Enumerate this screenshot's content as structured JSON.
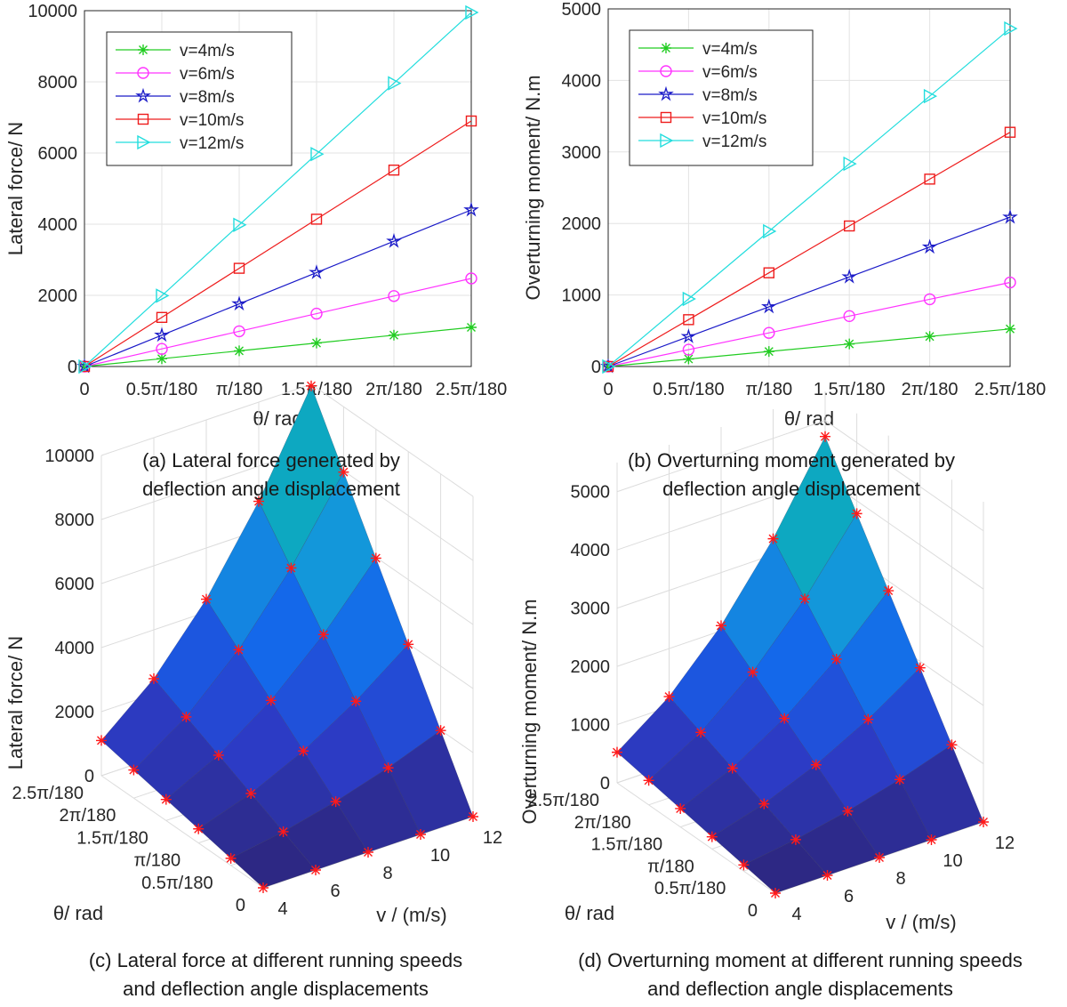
{
  "chart_data": [
    {
      "type": "line",
      "title": "",
      "caption": [
        "(a) Lateral force generated by",
        "deflection angle displacement"
      ],
      "xlabel": "θ/ rad",
      "ylabel": "Lateral force/ N",
      "x": [
        0,
        0.5,
        1,
        1.5,
        2,
        2.5
      ],
      "xtick_labels": [
        "0",
        "0.5π/180",
        "π/180",
        "1.5π/180",
        "2π/180",
        "2.5π/180"
      ],
      "ytick_labels": [
        "0",
        "2000",
        "4000",
        "6000",
        "8000",
        "10000"
      ],
      "ylim": [
        0,
        10000
      ],
      "xlim": [
        0,
        2.5
      ],
      "grid": true,
      "legend_position": "top-left",
      "series": [
        {
          "name": "v=4m/s",
          "marker": "asterisk",
          "color": "#22cc22",
          "values": [
            0,
            220,
            440,
            660,
            880,
            1100
          ]
        },
        {
          "name": "v=6m/s",
          "marker": "circle",
          "color": "#ff33ff",
          "values": [
            0,
            495,
            990,
            1485,
            1980,
            2475
          ]
        },
        {
          "name": "v=8m/s",
          "marker": "star",
          "color": "#1a1ac8",
          "values": [
            0,
            880,
            1760,
            2640,
            3520,
            4400
          ]
        },
        {
          "name": "v=10m/s",
          "marker": "square",
          "color": "#ee1c1c",
          "values": [
            0,
            1380,
            2760,
            4140,
            5520,
            6900
          ]
        },
        {
          "name": "v=12m/s",
          "marker": "triangle-right",
          "color": "#22dddd",
          "values": [
            0,
            1990,
            3980,
            5970,
            7960,
            9950
          ]
        }
      ]
    },
    {
      "type": "line",
      "title": "",
      "caption": [
        "(b) Overturning moment generated by",
        "deflection angle displacement"
      ],
      "xlabel": "θ/ rad",
      "ylabel": "Overturning moment/ N.m",
      "x": [
        0,
        0.5,
        1,
        1.5,
        2,
        2.5
      ],
      "xtick_labels": [
        "0",
        "0.5π/180",
        "π/180",
        "1.5π/180",
        "2π/180",
        "2.5π/180"
      ],
      "ytick_labels": [
        "0",
        "1000",
        "2000",
        "3000",
        "4000",
        "5000"
      ],
      "ylim": [
        0,
        5000
      ],
      "xlim": [
        0,
        2.5
      ],
      "grid": true,
      "legend_position": "top-left",
      "series": [
        {
          "name": "v=4m/s",
          "marker": "asterisk",
          "color": "#22cc22",
          "values": [
            0,
            105,
            210,
            315,
            420,
            525
          ]
        },
        {
          "name": "v=6m/s",
          "marker": "circle",
          "color": "#ff33ff",
          "values": [
            0,
            235,
            470,
            705,
            940,
            1175
          ]
        },
        {
          "name": "v=8m/s",
          "marker": "star",
          "color": "#1a1ac8",
          "values": [
            0,
            418,
            835,
            1253,
            1670,
            2088
          ]
        },
        {
          "name": "v=10m/s",
          "marker": "square",
          "color": "#ee1c1c",
          "values": [
            0,
            655,
            1310,
            1965,
            2620,
            3275
          ]
        },
        {
          "name": "v=12m/s",
          "marker": "triangle-right",
          "color": "#22dddd",
          "values": [
            0,
            945,
            1890,
            2835,
            3780,
            4725
          ]
        }
      ]
    },
    {
      "type": "surface",
      "title": "",
      "caption": [
        "(c) Lateral force at different running speeds",
        "and deflection angle displacements"
      ],
      "xlabel": "v / (m/s)",
      "ylabel": "θ/ rad",
      "zlabel": "Lateral force/ N",
      "v": [
        4,
        6,
        8,
        10,
        12
      ],
      "v_tick_labels": [
        "4",
        "6",
        "8",
        "10",
        "12"
      ],
      "theta": [
        0,
        0.5,
        1,
        1.5,
        2,
        2.5
      ],
      "theta_tick_labels": [
        "0",
        "0.5π/180",
        "π/180",
        "1.5π/180",
        "2π/180",
        "2.5π/180"
      ],
      "z_tick_labels": [
        "0",
        "2000",
        "4000",
        "6000",
        "8000",
        "10000"
      ],
      "zlim": [
        0,
        10000
      ],
      "z_values_by_v": [
        [
          0,
          220,
          440,
          660,
          880,
          1100
        ],
        [
          0,
          495,
          990,
          1485,
          1980,
          2475
        ],
        [
          0,
          880,
          1760,
          2640,
          3520,
          4400
        ],
        [
          0,
          1380,
          2760,
          4140,
          5520,
          6900
        ],
        [
          0,
          1990,
          3980,
          5970,
          7960,
          9950
        ]
      ],
      "marker_color": "#ff1a1a"
    },
    {
      "type": "surface",
      "title": "",
      "caption": [
        "(d) Overturning moment at different running speeds",
        "and deflection angle displacements"
      ],
      "xlabel": "v / (m/s)",
      "ylabel": "θ/ rad",
      "zlabel": "Overturning moment/ N.m",
      "v": [
        4,
        6,
        8,
        10,
        12
      ],
      "v_tick_labels": [
        "4",
        "6",
        "8",
        "10",
        "12"
      ],
      "theta": [
        0,
        0.5,
        1,
        1.5,
        2,
        2.5
      ],
      "theta_tick_labels": [
        "0",
        "0.5π/180",
        "π/180",
        "1.5π/180",
        "2π/180",
        "2.5π/180"
      ],
      "z_tick_labels": [
        "0",
        "1000",
        "2000",
        "3000",
        "4000",
        "5000"
      ],
      "zlim": [
        0,
        5500
      ],
      "z_values_by_v": [
        [
          0,
          105,
          210,
          315,
          420,
          525
        ],
        [
          0,
          235,
          470,
          705,
          940,
          1175
        ],
        [
          0,
          418,
          835,
          1253,
          1670,
          2088
        ],
        [
          0,
          655,
          1310,
          1965,
          2620,
          3275
        ],
        [
          0,
          945,
          1890,
          2835,
          3780,
          4725
        ]
      ],
      "marker_color": "#ff1a1a"
    }
  ]
}
